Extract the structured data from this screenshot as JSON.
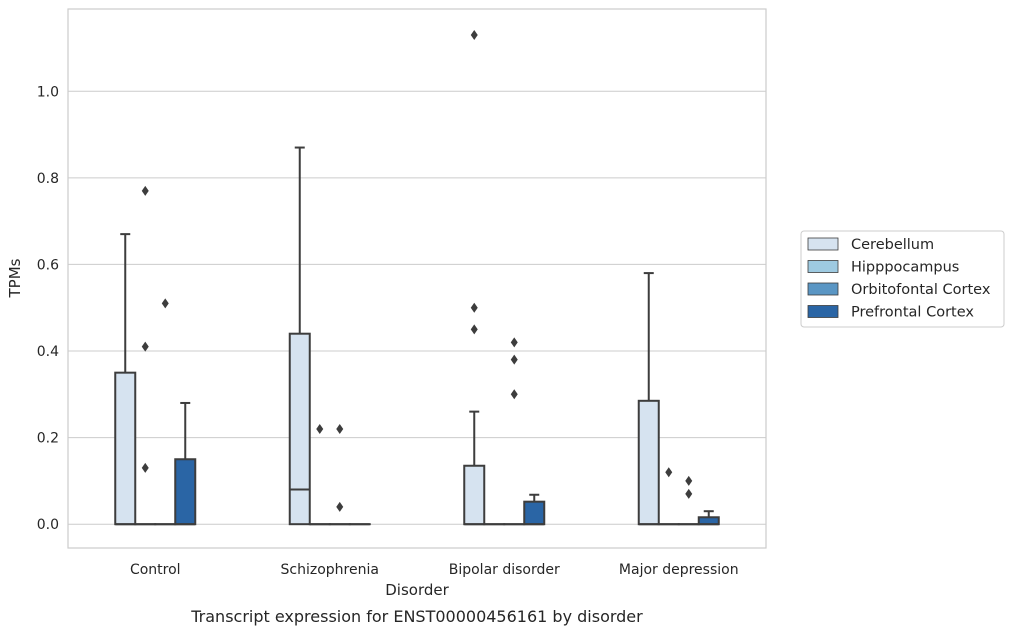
{
  "chart_data": {
    "type": "box",
    "title": "",
    "caption": "Transcript expression for ENST00000456161 by disorder",
    "xlabel": "Disorder",
    "ylabel": "TPMs",
    "ylim": [
      -0.055,
      1.19
    ],
    "yticks": [
      0.0,
      0.2,
      0.4,
      0.6,
      0.8,
      1.0
    ],
    "ytick_labels": [
      "0.0",
      "0.2",
      "0.4",
      "0.6",
      "0.8",
      "1.0"
    ],
    "grid": "horizontal",
    "legend_placement": "center-right outside",
    "categories": [
      "Control",
      "Schizophrenia",
      "Bipolar disorder",
      "Major depression"
    ],
    "series": [
      {
        "name": "Cerebellum",
        "color": "#d6e3f0",
        "boxes": [
          {
            "q1": 0.0,
            "median": 0.0,
            "q3": 0.35,
            "whisker_low": 0.0,
            "whisker_high": 0.67,
            "outliers": []
          },
          {
            "q1": 0.0,
            "median": 0.08,
            "q3": 0.44,
            "whisker_low": 0.0,
            "whisker_high": 0.87,
            "outliers": []
          },
          {
            "q1": 0.0,
            "median": 0.0,
            "q3": 0.135,
            "whisker_low": 0.0,
            "whisker_high": 0.26,
            "outliers": [
              0.45,
              0.5,
              1.13
            ]
          },
          {
            "q1": 0.0,
            "median": 0.0,
            "q3": 0.285,
            "whisker_low": 0.0,
            "whisker_high": 0.58,
            "outliers": []
          }
        ]
      },
      {
        "name": "Hipppocampus",
        "color": "#9ecae1",
        "boxes": [
          {
            "q1": 0.0,
            "median": 0.0,
            "q3": 0.0,
            "whisker_low": 0.0,
            "whisker_high": 0.0,
            "outliers": [
              0.13,
              0.41,
              0.77
            ]
          },
          {
            "q1": 0.0,
            "median": 0.0,
            "q3": 0.0,
            "whisker_low": 0.0,
            "whisker_high": 0.0,
            "outliers": [
              0.22
            ]
          },
          {
            "q1": 0.0,
            "median": 0.0,
            "q3": 0.0,
            "whisker_low": 0.0,
            "whisker_high": 0.0,
            "outliers": []
          },
          {
            "q1": 0.0,
            "median": 0.0,
            "q3": 0.0,
            "whisker_low": 0.0,
            "whisker_high": 0.0,
            "outliers": [
              0.12
            ]
          }
        ]
      },
      {
        "name": "Orbitofontal Cortex",
        "color": "#5a96c4",
        "boxes": [
          {
            "q1": 0.0,
            "median": 0.0,
            "q3": 0.0,
            "whisker_low": 0.0,
            "whisker_high": 0.0,
            "outliers": [
              0.51
            ]
          },
          {
            "q1": 0.0,
            "median": 0.0,
            "q3": 0.0,
            "whisker_low": 0.0,
            "whisker_high": 0.0,
            "outliers": [
              0.04,
              0.22
            ]
          },
          {
            "q1": 0.0,
            "median": 0.0,
            "q3": 0.0,
            "whisker_low": 0.0,
            "whisker_high": 0.0,
            "outliers": [
              0.3,
              0.38,
              0.42
            ]
          },
          {
            "q1": 0.0,
            "median": 0.0,
            "q3": 0.0,
            "whisker_low": 0.0,
            "whisker_high": 0.0,
            "outliers": [
              0.07,
              0.1
            ]
          }
        ]
      },
      {
        "name": "Prefrontal Cortex",
        "color": "#2a65a5",
        "boxes": [
          {
            "q1": 0.0,
            "median": 0.0,
            "q3": 0.15,
            "whisker_low": 0.0,
            "whisker_high": 0.28,
            "outliers": []
          },
          {
            "q1": 0.0,
            "median": 0.0,
            "q3": 0.0,
            "whisker_low": 0.0,
            "whisker_high": 0.0,
            "outliers": []
          },
          {
            "q1": 0.0,
            "median": 0.0,
            "q3": 0.052,
            "whisker_low": 0.0,
            "whisker_high": 0.068,
            "outliers": []
          },
          {
            "q1": 0.0,
            "median": 0.0,
            "q3": 0.016,
            "whisker_low": 0.0,
            "whisker_high": 0.03,
            "outliers": []
          }
        ]
      }
    ]
  }
}
